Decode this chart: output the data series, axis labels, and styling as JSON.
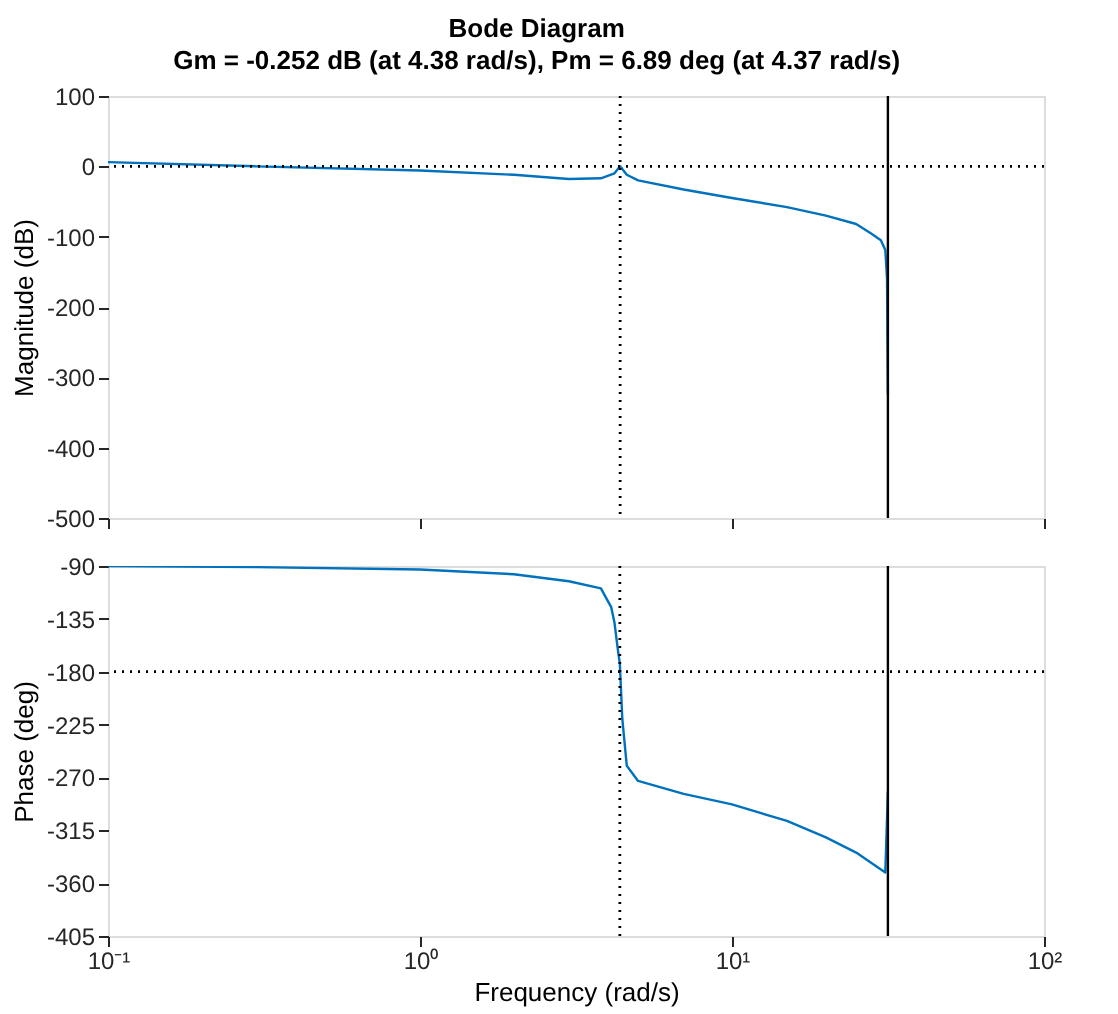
{
  "chart_data": [
    {
      "type": "line",
      "title": "Bode Diagram",
      "subtitle": "Gm = -0.252 dB (at 4.38 rad/s),  Pm = 6.89 deg (at 4.37 rad/s)",
      "ylabel": "Magnitude (dB)",
      "log": "x",
      "xlim": [
        0.1,
        100
      ],
      "xticks": [
        {
          "value": 0.1,
          "label": null
        },
        {
          "value": 1,
          "label": null
        },
        {
          "value": 10,
          "label": null
        },
        {
          "value": 100,
          "label": null
        }
      ],
      "ylim": [
        -500,
        100
      ],
      "yticks": [
        -500,
        -400,
        -300,
        -200,
        -100,
        0,
        100
      ],
      "tick_labels": "y",
      "grid": false,
      "line_style": "solid",
      "marker": "none",
      "series": [
        {
          "color": "#0072bd",
          "x": [
            0.1,
            0.3,
            1,
            2,
            3,
            3.8,
            4.2,
            4.38,
            4.6,
            5,
            7,
            10,
            15,
            20,
            25,
            28,
            30,
            31,
            31.4,
            31.6
          ],
          "values": [
            6,
            0,
            -6,
            -12,
            -18,
            -17,
            -10,
            0,
            -12,
            -20,
            -33,
            -45,
            -58,
            -70,
            -82,
            -96,
            -105,
            -119,
            -160,
            -324
          ]
        }
      ],
      "ref_lines": [
        {
          "axis": "y",
          "value": 0,
          "color": "#000000",
          "line_style": "dotted"
        },
        {
          "axis": "x",
          "value": 4.38,
          "color": "#000000",
          "line_style": "dotted"
        },
        {
          "axis": "x",
          "value": 31.6,
          "color": "#000000",
          "line_style": "solid"
        }
      ]
    },
    {
      "type": "line",
      "xlabel": "Frequency  (rad/s)",
      "ylabel": "Phase (deg)",
      "log": "x",
      "xlim": [
        0.1,
        100
      ],
      "xticks": [
        {
          "value": 0.1,
          "label": "10⁻¹"
        },
        {
          "value": 1,
          "label": "10⁰"
        },
        {
          "value": 10,
          "label": "10¹"
        },
        {
          "value": 100,
          "label": "10²"
        }
      ],
      "ylim": [
        -405,
        -90
      ],
      "yticks": [
        -405,
        -360,
        -315,
        -270,
        -225,
        -180,
        -135,
        -90
      ],
      "grid": false,
      "line_style": "solid",
      "marker": "none",
      "series": [
        {
          "color": "#0072bd",
          "x": [
            0.1,
            0.3,
            1,
            2,
            3,
            3.8,
            4.1,
            4.2,
            4.3,
            4.37,
            4.45,
            4.6,
            5,
            7,
            10,
            15,
            20,
            25,
            31,
            31.6
          ],
          "values": [
            -90,
            -91,
            -93,
            -97,
            -103,
            -109,
            -125,
            -138,
            -160,
            -173,
            -220,
            -260,
            -273,
            -284,
            -293,
            -307,
            -321,
            -334,
            -351,
            -282
          ]
        }
      ],
      "ref_lines": [
        {
          "axis": "y",
          "value": -180,
          "color": "#000000",
          "line_style": "dotted"
        },
        {
          "axis": "x",
          "value": 4.37,
          "color": "#000000",
          "line_style": "dotted"
        },
        {
          "axis": "x",
          "value": 31.6,
          "color": "#000000",
          "line_style": "solid"
        }
      ]
    }
  ]
}
